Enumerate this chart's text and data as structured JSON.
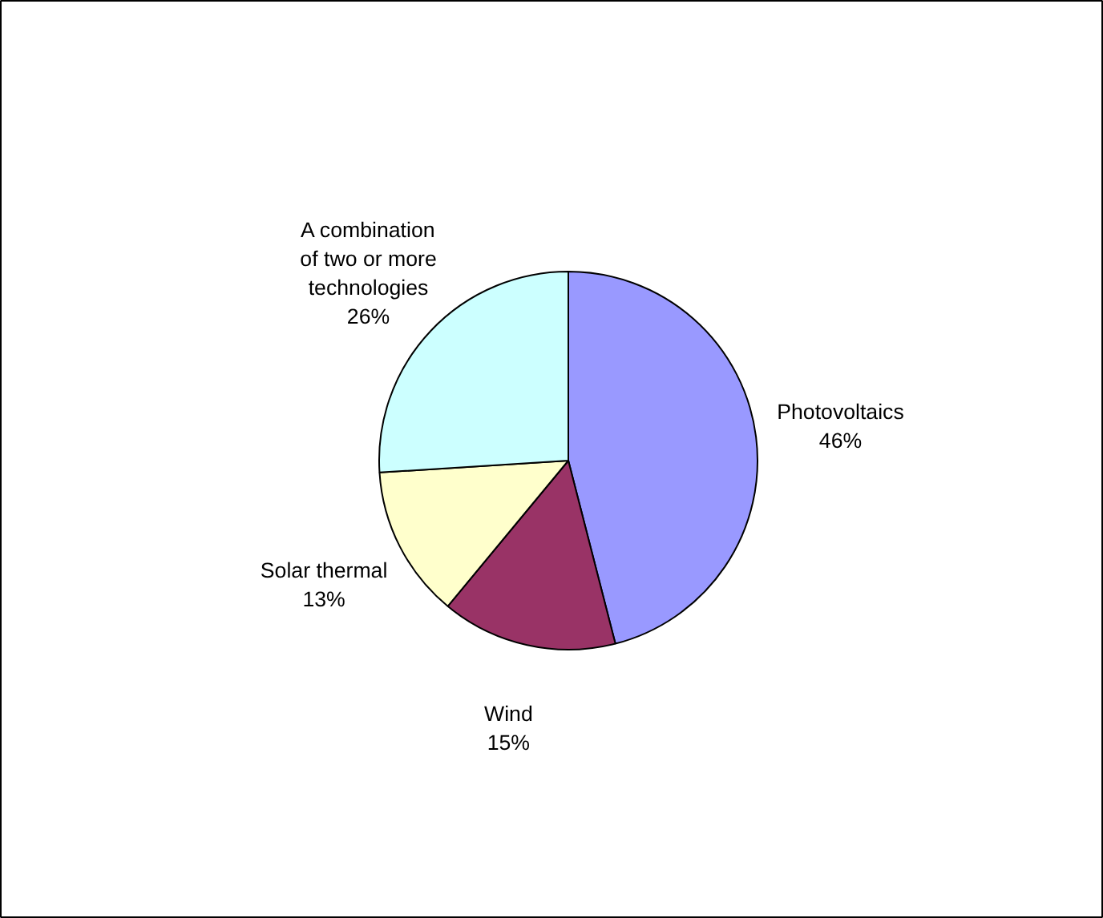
{
  "chart_data": {
    "type": "pie",
    "categories": [
      "Photovoltaics",
      "Wind",
      "Solar thermal",
      "A combination of two or more technologies"
    ],
    "values": [
      46,
      15,
      13,
      26
    ],
    "value_labels": [
      "46%",
      "15%",
      "13%",
      "26%"
    ],
    "colors": [
      "#9999ff",
      "#993366",
      "#ffffcc",
      "#ccffff"
    ]
  }
}
